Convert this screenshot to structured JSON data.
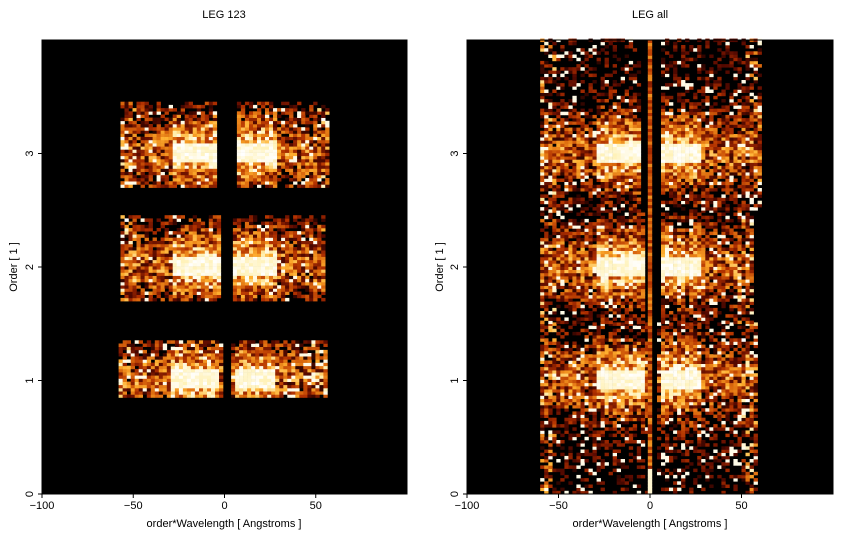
{
  "chart_data": [
    {
      "type": "heatmap",
      "title": "LEG 123",
      "xlabel": "order*Wavelength [ Angstroms ]",
      "ylabel": "Order [ 1 ]",
      "xlim": [
        -100,
        100
      ],
      "ylim": [
        0,
        4
      ],
      "xticks": [
        -100,
        -50,
        0,
        50
      ],
      "yticks": [
        0,
        1,
        2,
        3
      ],
      "colormap": [
        "#000000",
        "#5a0a00",
        "#b03000",
        "#e07010",
        "#ffb030",
        "#fff0b0",
        "#ffffff"
      ],
      "background": "#000000",
      "bands": [
        {
          "order": 1,
          "y_range": [
            0.85,
            1.35
          ],
          "x_range": [
            -58,
            55
          ],
          "core": [
            [
              -30,
              -4
            ],
            [
              4,
              27
            ]
          ],
          "gap": [
            -2,
            2
          ]
        },
        {
          "order": 2,
          "y_range": [
            1.7,
            2.45
          ],
          "x_range": [
            -57,
            55
          ],
          "core": [
            [
              -30,
              -3
            ],
            [
              3,
              27
            ]
          ],
          "gap": [
            -3,
            4
          ]
        },
        {
          "order": 3,
          "y_range": [
            2.7,
            3.45
          ],
          "x_range": [
            -57,
            57
          ],
          "core": [
            [
              -30,
              -4
            ],
            [
              5,
              27
            ]
          ],
          "gap": [
            -5,
            5
          ]
        }
      ]
    },
    {
      "type": "heatmap",
      "title": "LEG all",
      "xlabel": "order*Wavelength [ Angstroms ]",
      "ylabel": "Order [ 1 ]",
      "xlim": [
        -100,
        100
      ],
      "ylim": [
        0,
        4
      ],
      "xticks": [
        -100,
        -50,
        0,
        50
      ],
      "yticks": [
        0,
        1,
        2,
        3
      ],
      "colormap": [
        "#000000",
        "#5a0a00",
        "#b03000",
        "#e07010",
        "#ffb030",
        "#fff0b0",
        "#ffffff"
      ],
      "background": "#000000",
      "bands": [
        {
          "order": 1,
          "y_range": [
            0.0,
            1.5
          ],
          "x_range": [
            -60,
            58
          ],
          "core": [
            [
              -30,
              -4
            ],
            [
              4,
              27
            ]
          ],
          "gap": [
            -2,
            2
          ]
        },
        {
          "order": 2,
          "y_range": [
            1.5,
            2.5
          ],
          "x_range": [
            -60,
            55
          ],
          "core": [
            [
              -30,
              -3
            ],
            [
              3,
              27
            ]
          ],
          "gap": [
            -4,
            4
          ]
        },
        {
          "order": 3,
          "y_range": [
            2.5,
            4.0
          ],
          "x_range": [
            -60,
            60
          ],
          "core": [
            [
              -30,
              -4
            ],
            [
              5,
              27
            ]
          ],
          "gap": [
            -5,
            5
          ]
        }
      ]
    }
  ]
}
